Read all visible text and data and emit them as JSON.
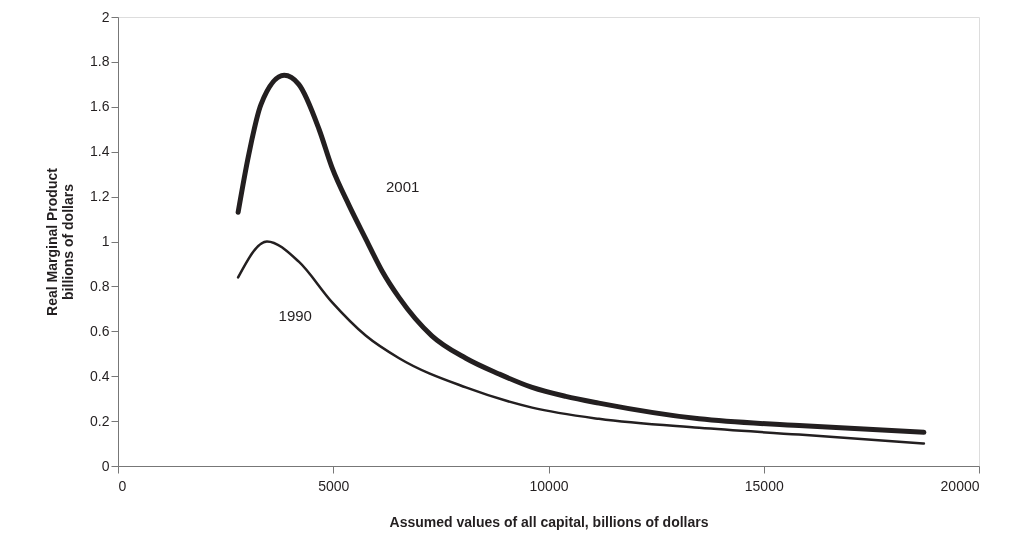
{
  "chart_data": {
    "type": "line",
    "xlabel": "Assumed values of all capital, billions of dollars",
    "ylabel": "Real Marginal Product\nbillions of dollars",
    "xlim": [
      0,
      20000
    ],
    "xticks": [
      0,
      5000,
      10000,
      15000,
      20000
    ],
    "ylim": [
      0,
      2
    ],
    "yticks": [
      0,
      0.2,
      0.4,
      0.6,
      0.8,
      1,
      1.2,
      1.4,
      1.6,
      1.8,
      2
    ],
    "grid": false,
    "marker": "none",
    "line_style": "solid",
    "series": [
      {
        "name": "2001",
        "color": "#231f20",
        "x": [
          2790,
          3040,
          3320,
          3860,
          4200,
          4670,
          4970,
          5370,
          5760,
          6130,
          6530,
          7290,
          8080,
          8850,
          9620,
          10400,
          11170,
          13500,
          15820,
          18720
        ],
        "values": [
          1.13,
          1.39,
          1.61,
          1.74,
          1.7,
          1.5,
          1.33,
          1.16,
          1.01,
          0.87,
          0.75,
          0.58,
          0.48,
          0.41,
          0.35,
          0.31,
          0.28,
          0.21,
          0.18,
          0.15
        ]
      },
      {
        "name": "1990",
        "color": "#231f20",
        "x": [
          2790,
          3460,
          4200,
          4970,
          5760,
          6530,
          8080,
          9620,
          11170,
          13500,
          15820,
          18720
        ],
        "values": [
          0.84,
          1.0,
          0.91,
          0.73,
          0.58,
          0.48,
          0.35,
          0.26,
          0.21,
          0.17,
          0.14,
          0.1
        ]
      }
    ]
  }
}
